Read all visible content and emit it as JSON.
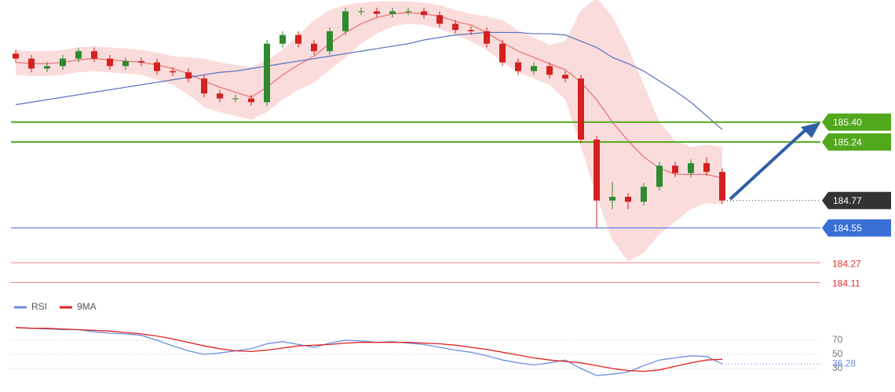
{
  "chart_data": [
    {
      "type": "candlestick",
      "open": [
        185.95,
        185.91,
        185.83,
        185.85,
        185.91,
        185.97,
        185.91,
        185.85,
        185.89,
        185.88,
        185.81,
        185.8,
        185.75,
        185.63,
        185.59,
        185.59,
        185.56,
        186.03,
        186.1,
        186.03,
        185.97,
        186.13,
        186.29,
        186.29,
        186.27,
        186.29,
        186.29,
        186.26,
        186.19,
        186.14,
        186.13,
        186.03,
        185.88,
        185.81,
        185.85,
        185.78,
        185.75,
        185.26,
        184.77,
        184.8,
        184.76,
        184.88,
        185.05,
        184.99,
        185.07,
        185.0
      ],
      "high": [
        185.98,
        185.94,
        185.88,
        185.94,
        186.0,
        186.0,
        185.94,
        185.92,
        185.92,
        185.91,
        185.84,
        185.83,
        185.78,
        185.66,
        185.62,
        185.62,
        186.06,
        186.13,
        186.13,
        186.06,
        186.16,
        186.32,
        186.32,
        186.32,
        186.32,
        186.32,
        186.32,
        186.29,
        186.22,
        186.17,
        186.16,
        186.06,
        185.91,
        185.88,
        185.88,
        185.81,
        185.78,
        185.29,
        184.92,
        184.83,
        184.91,
        185.08,
        185.08,
        185.1,
        185.12,
        185.03
      ],
      "low": [
        185.88,
        185.8,
        185.8,
        185.82,
        185.88,
        185.88,
        185.82,
        185.82,
        185.85,
        185.78,
        185.77,
        185.72,
        185.6,
        185.56,
        185.56,
        185.53,
        185.53,
        186.0,
        186.0,
        185.94,
        185.94,
        186.1,
        186.26,
        186.24,
        186.24,
        186.26,
        186.23,
        186.16,
        186.11,
        186.1,
        186.0,
        185.85,
        185.78,
        185.78,
        185.75,
        185.72,
        185.23,
        184.55,
        184.7,
        184.7,
        184.73,
        184.85,
        184.96,
        184.96,
        184.97,
        184.74
      ],
      "close": [
        185.91,
        185.83,
        185.85,
        185.91,
        185.97,
        185.91,
        185.85,
        185.89,
        185.88,
        185.81,
        185.8,
        185.75,
        185.63,
        185.59,
        185.59,
        185.56,
        186.03,
        186.1,
        186.03,
        185.97,
        186.13,
        186.29,
        186.29,
        186.27,
        186.29,
        186.29,
        186.26,
        186.19,
        186.14,
        186.13,
        186.03,
        185.88,
        185.81,
        185.85,
        185.78,
        185.75,
        185.26,
        184.77,
        184.8,
        184.76,
        184.88,
        185.05,
        184.99,
        185.07,
        185.0,
        184.77
      ],
      "ma_fast": [
        185.88,
        185.87,
        185.87,
        185.88,
        185.9,
        185.91,
        185.9,
        185.89,
        185.88,
        185.86,
        185.83,
        185.79,
        185.73,
        185.68,
        185.64,
        185.6,
        185.68,
        185.78,
        185.86,
        185.93,
        186.03,
        186.12,
        186.19,
        186.24,
        186.27,
        186.28,
        186.27,
        186.25,
        186.21,
        186.18,
        186.12,
        186.04,
        185.97,
        185.92,
        185.87,
        185.82,
        185.72,
        185.58,
        185.4,
        185.25,
        185.12,
        185.03,
        184.98,
        184.98,
        184.98,
        184.95
      ],
      "ma_slow": [
        185.54,
        185.56,
        185.58,
        185.6,
        185.62,
        185.64,
        185.66,
        185.68,
        185.7,
        185.72,
        185.74,
        185.76,
        185.78,
        185.8,
        185.81,
        185.83,
        185.85,
        185.87,
        185.89,
        185.91,
        185.93,
        185.95,
        185.97,
        185.99,
        186.01,
        186.03,
        186.06,
        186.08,
        186.1,
        186.11,
        186.12,
        186.12,
        186.12,
        186.11,
        186.11,
        186.1,
        186.05,
        186.0,
        185.92,
        185.87,
        185.81,
        185.73,
        185.65,
        185.56,
        185.45,
        185.34
      ],
      "band_upper": [
        185.98,
        185.97,
        185.97,
        185.98,
        186.0,
        186.01,
        186.0,
        185.99,
        185.98,
        185.96,
        185.93,
        185.92,
        185.91,
        185.88,
        185.86,
        185.84,
        185.9,
        185.98,
        186.1,
        186.22,
        186.3,
        186.34,
        186.36,
        186.37,
        186.37,
        186.37,
        186.36,
        186.34,
        186.3,
        186.27,
        186.25,
        186.22,
        186.14,
        186.08,
        186.02,
        186.05,
        186.3,
        186.4,
        186.25,
        186.0,
        185.7,
        185.4,
        185.25,
        185.2,
        185.22,
        185.2
      ],
      "band_lower": [
        185.78,
        185.77,
        185.77,
        185.78,
        185.8,
        185.81,
        185.8,
        185.79,
        185.78,
        185.74,
        185.7,
        185.62,
        185.52,
        185.48,
        185.45,
        185.42,
        185.48,
        185.58,
        185.66,
        185.72,
        185.82,
        185.92,
        186.03,
        186.11,
        186.17,
        186.19,
        186.18,
        186.15,
        186.1,
        186.05,
        185.98,
        185.88,
        185.8,
        185.75,
        185.7,
        185.58,
        185.2,
        184.8,
        184.45,
        184.28,
        184.35,
        184.5,
        184.6,
        184.7,
        184.75,
        184.74
      ],
      "up_color": "#2e8b2e",
      "down_color": "#d32020",
      "ma_fast_color": "#e87070",
      "ma_slow_color": "#5570c0",
      "band_color": "#f9d3d3",
      "ylim": [
        184.0,
        186.4
      ],
      "levels": [
        {
          "value": 185.4,
          "label": "185.40",
          "color": "#52a81c",
          "style": "box"
        },
        {
          "value": 185.24,
          "label": "185.24",
          "color": "#52a81c",
          "style": "box"
        },
        {
          "value": 184.77,
          "label": "184.77",
          "color": "#333333",
          "style": "dotted"
        },
        {
          "value": 184.55,
          "label": "184.55",
          "color": "#3a6fd8",
          "style": "box"
        },
        {
          "value": 184.27,
          "label": "184.27",
          "color": "#e03030",
          "style": "text"
        },
        {
          "value": 184.11,
          "label": "184.11",
          "color": "#e03030",
          "style": "text"
        }
      ]
    },
    {
      "type": "line",
      "series": [
        {
          "name": "RSI",
          "color": "#6a8ee0",
          "values": [
            88,
            87,
            86,
            85,
            85,
            82,
            80,
            79,
            77,
            70,
            62,
            55,
            50,
            52,
            55,
            58,
            65,
            68,
            64,
            60,
            66,
            70,
            69,
            67,
            68,
            66,
            64,
            60,
            56,
            53,
            48,
            42,
            38,
            35,
            38,
            42,
            30,
            20,
            22,
            25,
            34,
            42,
            45,
            48,
            47,
            36.28
          ]
        },
        {
          "name": "9MA",
          "color": "#e02020",
          "values": [
            88,
            87,
            87,
            86,
            85,
            84,
            83,
            81,
            79,
            76,
            72,
            67,
            62,
            58,
            55,
            54,
            56,
            59,
            62,
            63,
            64,
            66,
            67,
            67,
            67,
            67,
            66,
            65,
            63,
            60,
            57,
            53,
            49,
            45,
            42,
            40,
            38,
            34,
            30,
            27,
            26,
            28,
            33,
            38,
            42,
            43
          ]
        }
      ],
      "ylim": [
        0,
        100
      ],
      "yticks": [
        70,
        50,
        30
      ],
      "grid": true
    }
  ]
}
